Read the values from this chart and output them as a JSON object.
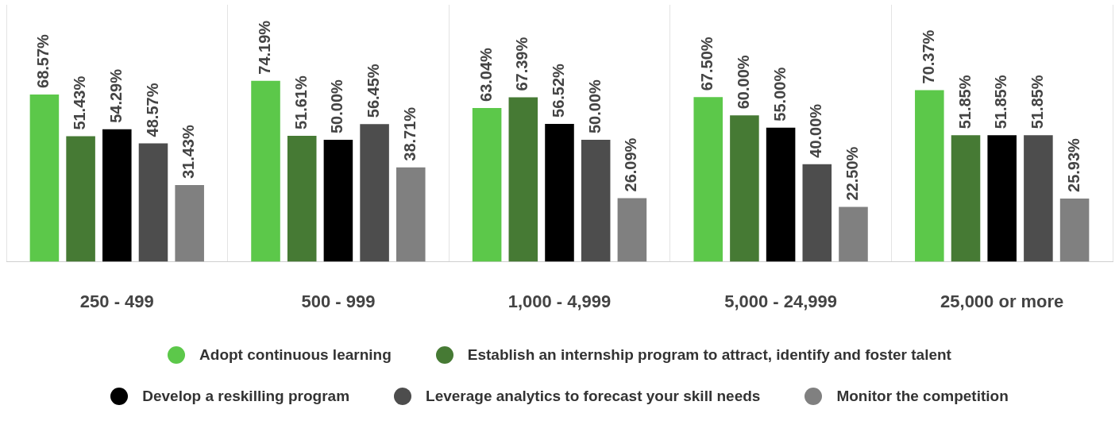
{
  "chart_data": {
    "type": "bar",
    "categories": [
      "250 - 499",
      "500 - 999",
      "1,000 - 4,999",
      "5,000 - 24,999",
      "25,000 or more"
    ],
    "series": [
      {
        "name": "Adopt continuous learning",
        "color": "#5cc84a",
        "values": [
          68.57,
          74.19,
          63.04,
          67.5,
          70.37
        ],
        "value_labels": [
          "68.57%",
          "74.19%",
          "63.04%",
          "67.50%",
          "70.37%"
        ]
      },
      {
        "name": "Establish an internship program to attract, identify and foster talent",
        "color": "#467a34",
        "values": [
          51.43,
          51.61,
          67.39,
          60,
          51.85
        ],
        "value_labels": [
          "51.43%",
          "51.61%",
          "67.39%",
          "60.00%",
          "51.85%"
        ]
      },
      {
        "name": "Develop a reskilling program",
        "color": "#000000",
        "values": [
          54.29,
          50,
          56.52,
          55,
          51.85
        ],
        "value_labels": [
          "54.29%",
          "50.00%",
          "56.52%",
          "55.00%",
          "51.85%"
        ]
      },
      {
        "name": "Leverage analytics to forecast your skill needs",
        "color": "#4d4d4d",
        "values": [
          48.57,
          56.45,
          50,
          40,
          51.85
        ],
        "value_labels": [
          "48.57%",
          "56.45%",
          "50.00%",
          "40.00%",
          "51.85%"
        ]
      },
      {
        "name": "Monitor the competition",
        "color": "#808080",
        "values": [
          31.43,
          38.71,
          26.09,
          22.5,
          25.93
        ],
        "value_labels": [
          "31.43%",
          "38.71%",
          "26.09%",
          "22.50%",
          "25.93%"
        ]
      }
    ],
    "grid": "x",
    "legend": "bottom"
  }
}
